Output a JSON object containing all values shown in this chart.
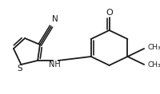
{
  "bg_color": "#ffffff",
  "line_color": "#1a1a1a",
  "text_color": "#1a1a1a",
  "line_width": 1.3,
  "font_size": 7.0,
  "figsize": [
    2.0,
    1.18
  ],
  "dpi": 100,
  "S_label": "S",
  "N_label": "N",
  "NH_label": "NH",
  "O_label": "O",
  "Me1_label": "CH₃",
  "Me2_label": "CH₃"
}
